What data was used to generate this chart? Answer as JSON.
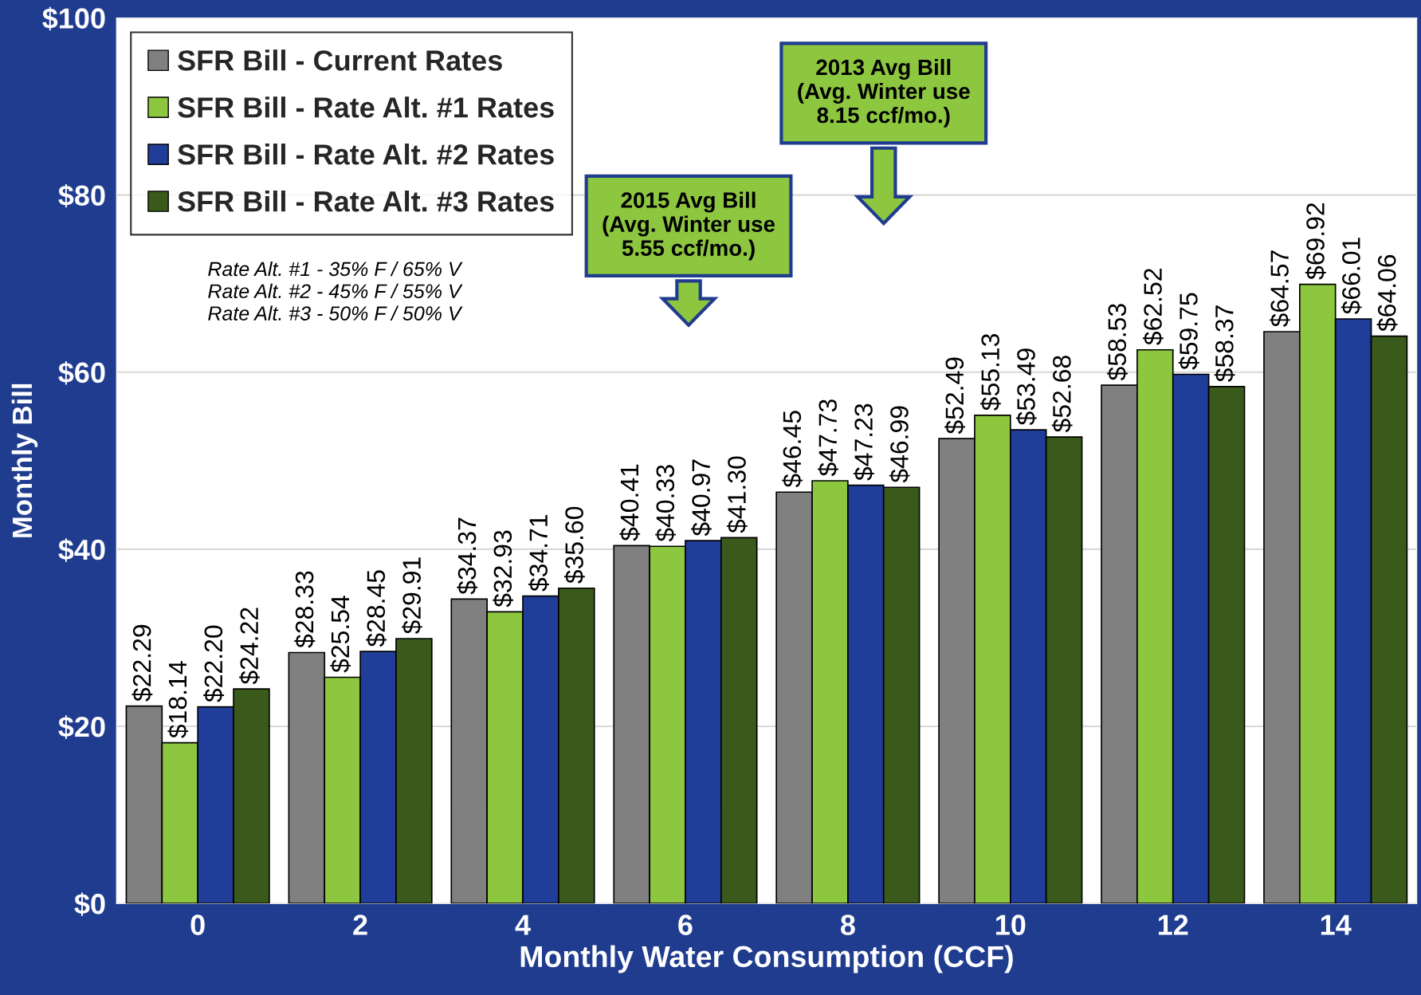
{
  "chart_data": {
    "type": "bar",
    "xlabel": "Monthly Water Consumption (CCF)",
    "ylabel": "Monthly Bill",
    "categories": [
      "0",
      "2",
      "4",
      "6",
      "8",
      "10",
      "12",
      "14"
    ],
    "series": [
      {
        "name": "SFR Bill - Current Rates",
        "color": "#808080",
        "values": [
          22.29,
          28.33,
          34.37,
          40.41,
          46.45,
          52.49,
          58.53,
          64.57
        ],
        "value_labels": [
          "$22.29",
          "$28.33",
          "$34.37",
          "$40.41",
          "$46.45",
          "$52.49",
          "$58.53",
          "$64.57"
        ]
      },
      {
        "name": "SFR Bill - Rate Alt. #1 Rates",
        "color": "#8dc63f",
        "values": [
          18.14,
          25.54,
          32.93,
          40.33,
          47.73,
          55.13,
          62.52,
          69.92
        ],
        "value_labels": [
          "$18.14",
          "$25.54",
          "$32.93",
          "$40.33",
          "$47.73",
          "$55.13",
          "$62.52",
          "$69.92"
        ]
      },
      {
        "name": "SFR Bill - Rate Alt. #2 Rates",
        "color": "#1f3d99",
        "values": [
          22.2,
          28.45,
          34.71,
          40.97,
          47.23,
          53.49,
          59.75,
          66.01
        ],
        "value_labels": [
          "$22.20",
          "$28.45",
          "$34.71",
          "$40.97",
          "$47.23",
          "$53.49",
          "$59.75",
          "$66.01"
        ]
      },
      {
        "name": "SFR Bill - Rate Alt. #3 Rates",
        "color": "#3a5a1c",
        "values": [
          24.22,
          29.91,
          35.6,
          41.3,
          46.99,
          52.68,
          58.37,
          64.06
        ],
        "value_labels": [
          "$24.22",
          "$29.91",
          "$35.60",
          "$41.30",
          "$46.99",
          "$52.68",
          "$58.37",
          "$64.06"
        ]
      }
    ],
    "ylim": [
      0,
      100
    ],
    "yticks": [
      {
        "value": 0,
        "label": "$0"
      },
      {
        "value": 20,
        "label": "$20"
      },
      {
        "value": 40,
        "label": "$40"
      },
      {
        "value": 60,
        "label": "$60"
      },
      {
        "value": 80,
        "label": "$80"
      },
      {
        "value": 100,
        "label": "$100"
      }
    ],
    "grid": "y",
    "legend": "top left",
    "annotations": [
      "Rate Alt. #1 - 35% F / 65% V\nRate Alt. #2 - 45% F / 55% V\nRate Alt. #3 - 50% F / 50% V",
      "2015 Avg Bill\n(Avg. Winter use\n5.55 ccf/mo.)",
      "2013 Avg Bill\n(Avg. Winter use\n8.15 ccf/mo.)"
    ]
  }
}
